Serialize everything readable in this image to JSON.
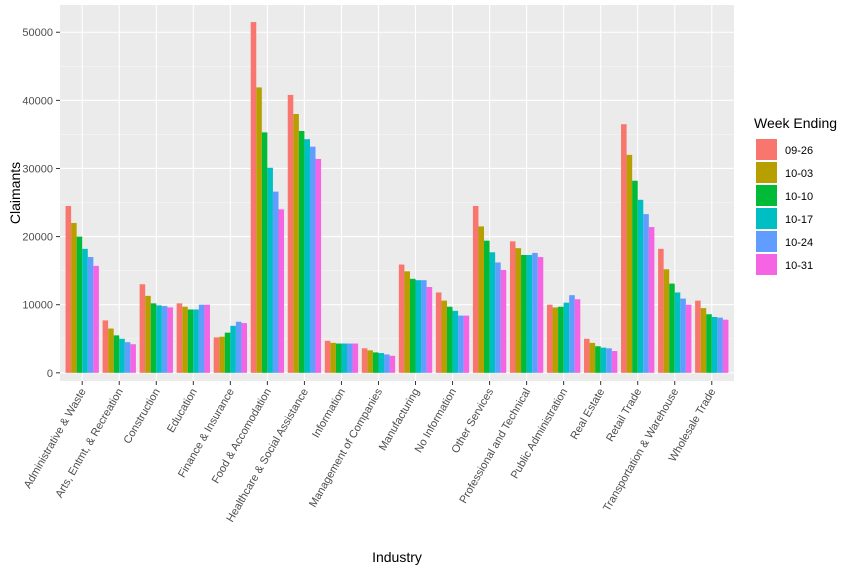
{
  "chart_data": {
    "type": "bar",
    "xlabel": "Industry",
    "ylabel": "Claimants",
    "ylim": [
      -1200,
      54000
    ],
    "yticks": [
      0,
      10000,
      20000,
      30000,
      40000,
      50000
    ],
    "ytick_labels": [
      "0",
      "10000",
      "20000",
      "30000",
      "40000",
      "50000"
    ],
    "grid": true,
    "legend_title": "Week Ending",
    "legend_position": "right",
    "categories": [
      "Administrative & Waste",
      "Arts, Entmt, & Recreation",
      "Construction",
      "Education",
      "Finance & Insurance",
      "Food & Accomodation",
      "Healthcare & Social Assistance",
      "Information",
      "Management of Companies",
      "Manufacturing",
      "No Information",
      "Other Services",
      "Professional and Technical",
      "Public Administration",
      "Real Estate",
      "Retail Trade",
      "Transportation & Warehouse",
      "Wholesale Trade"
    ],
    "series": [
      {
        "name": "09-26",
        "color": "#F8766D",
        "values": [
          24500,
          7700,
          13000,
          10200,
          5200,
          51500,
          40800,
          4700,
          3600,
          15900,
          11800,
          24500,
          19300,
          10000,
          5000,
          36500,
          18200,
          10600
        ]
      },
      {
        "name": "10-03",
        "color": "#B79F00",
        "values": [
          22000,
          6500,
          11300,
          9700,
          5300,
          41900,
          38000,
          4400,
          3300,
          14900,
          10600,
          21500,
          18300,
          9600,
          4400,
          32000,
          15200,
          9500
        ]
      },
      {
        "name": "10-10",
        "color": "#00BA38",
        "values": [
          20000,
          5500,
          10200,
          9300,
          5900,
          35300,
          35500,
          4300,
          3000,
          13800,
          9700,
          19400,
          17300,
          9700,
          3900,
          28200,
          13100,
          8600
        ]
      },
      {
        "name": "10-17",
        "color": "#00BFC4",
        "values": [
          18200,
          5000,
          9900,
          9300,
          6900,
          30100,
          34300,
          4300,
          2900,
          13600,
          9100,
          17700,
          17300,
          10300,
          3700,
          25400,
          11800,
          8200
        ]
      },
      {
        "name": "10-24",
        "color": "#619CFF",
        "values": [
          17000,
          4500,
          9800,
          10000,
          7500,
          26600,
          33200,
          4300,
          2700,
          13600,
          8400,
          16200,
          17600,
          11400,
          3600,
          23300,
          10900,
          8100
        ]
      },
      {
        "name": "10-31",
        "color": "#F564E3",
        "values": [
          15700,
          4200,
          9600,
          10000,
          7300,
          24000,
          31400,
          4300,
          2500,
          12600,
          8400,
          15100,
          17000,
          10800,
          3200,
          21400,
          10000,
          7800
        ]
      }
    ]
  }
}
